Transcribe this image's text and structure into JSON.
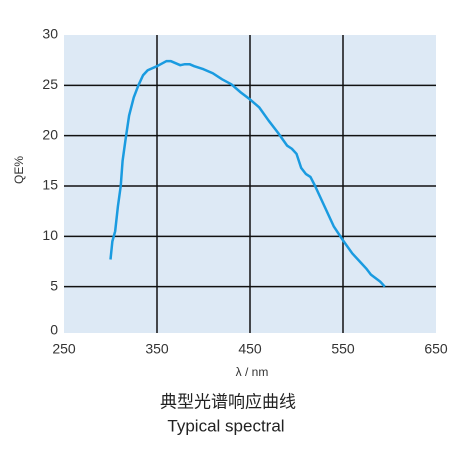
{
  "chart_data": {
    "type": "line",
    "x_label": "λ / nm",
    "y_label": "QE%",
    "caption": "典型光谱响应曲线",
    "caption_en": "Typical spectral",
    "x": [
      300,
      302,
      305,
      308,
      311,
      313,
      316,
      320,
      325,
      330,
      335,
      340,
      350,
      360,
      365,
      370,
      375,
      380,
      385,
      390,
      400,
      410,
      420,
      430,
      440,
      450,
      460,
      470,
      480,
      490,
      495,
      500,
      505,
      510,
      515,
      520,
      530,
      540,
      550,
      560,
      570,
      575,
      580,
      590,
      595
    ],
    "series": [
      {
        "name": "QE",
        "color": "#1a9be0",
        "values": [
          7.7,
          9.5,
          10.5,
          13,
          15,
          17.5,
          19.5,
          22,
          23.8,
          25,
          26,
          26.5,
          26.9,
          27.4,
          27.4,
          27.2,
          27.0,
          27.1,
          27.1,
          26.9,
          26.6,
          26.2,
          25.6,
          25.1,
          24.3,
          23.6,
          22.8,
          21.5,
          20.3,
          19.0,
          18.7,
          18.2,
          16.8,
          16.2,
          15.9,
          15.0,
          13.0,
          11.0,
          9.6,
          8.3,
          7.3,
          6.8,
          6.2,
          5.5,
          5.0
        ]
      }
    ],
    "xlim": [
      250,
      650
    ],
    "xticks": [
      250,
      350,
      450,
      550,
      650
    ],
    "ylim": [
      0,
      30
    ],
    "yticks": [
      0,
      5,
      10,
      15,
      20,
      25,
      30
    ],
    "grid": true,
    "background": "#dde9f5"
  }
}
